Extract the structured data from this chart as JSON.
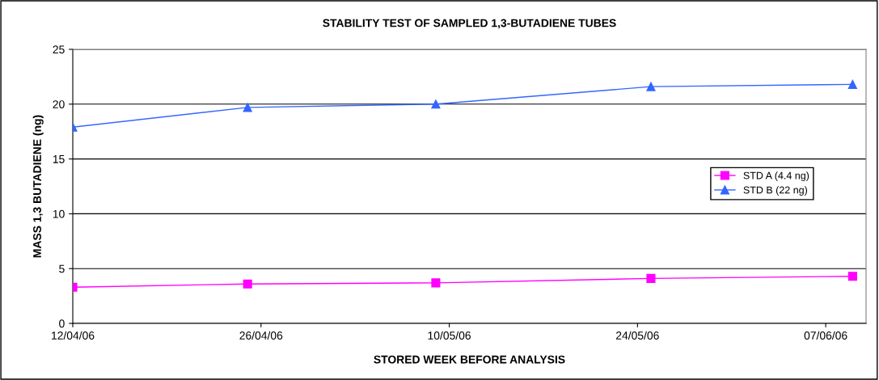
{
  "chart_data": {
    "type": "line",
    "title": "STABILITY TEST OF SAMPLED 1,3-BUTADIENE TUBES",
    "xlabel": "STORED WEEK BEFORE ANALYSIS",
    "ylabel": "MASS 1,3 BUTADIENE (ng)",
    "x": [
      "2006-04-12",
      "2006-04-25",
      "2006-05-09",
      "2006-05-25",
      "2006-06-09"
    ],
    "series": [
      {
        "name": "STD A (4.4 ng)",
        "color": "#ff00ff",
        "marker": "square",
        "values": [
          3.3,
          3.6,
          3.7,
          4.1,
          4.3
        ]
      },
      {
        "name": "STD B (22 ng)",
        "color": "#3366ff",
        "marker": "triangle",
        "values": [
          17.9,
          19.7,
          20.0,
          21.6,
          21.8
        ]
      }
    ],
    "xlim": [
      "2006-04-12",
      "2006-06-10"
    ],
    "xticks": [
      {
        "value": "2006-04-12",
        "label": "12/04/06"
      },
      {
        "value": "2006-04-26",
        "label": "26/04/06"
      },
      {
        "value": "2006-05-10",
        "label": "10/05/06"
      },
      {
        "value": "2006-05-24",
        "label": "24/05/06"
      },
      {
        "value": "2006-06-07",
        "label": "07/06/06"
      }
    ],
    "ylim": [
      0,
      25
    ],
    "yticks": [
      0,
      5,
      10,
      15,
      20,
      25
    ],
    "grid": "y",
    "legend": "right",
    "line_style": "solid"
  }
}
